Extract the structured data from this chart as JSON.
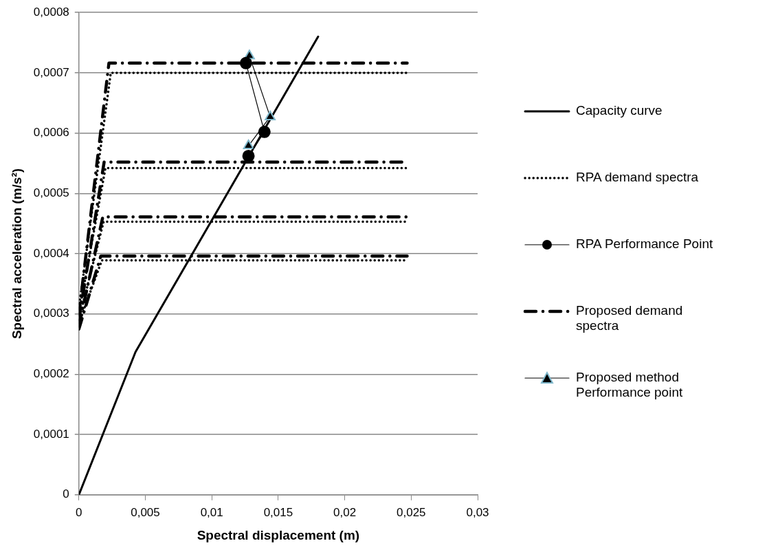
{
  "chart_data": {
    "type": "line",
    "xlabel": "Spectral displacement (m)",
    "ylabel": "Spectral acceleration (m/s²)",
    "xlim": [
      0,
      0.03
    ],
    "ylim": [
      0,
      0.0008
    ],
    "xticks": [
      {
        "value": 0,
        "label": "0"
      },
      {
        "value": 0.005,
        "label": "0,005"
      },
      {
        "value": 0.01,
        "label": "0,01"
      },
      {
        "value": 0.015,
        "label": "0,015"
      },
      {
        "value": 0.02,
        "label": "0,02"
      },
      {
        "value": 0.025,
        "label": "0,025"
      },
      {
        "value": 0.03,
        "label": "0,03"
      }
    ],
    "yticks": [
      {
        "value": 0,
        "label": "0"
      },
      {
        "value": 0.0001,
        "label": "0,0001"
      },
      {
        "value": 0.0002,
        "label": "0,0002"
      },
      {
        "value": 0.0003,
        "label": "0,0003"
      },
      {
        "value": 0.0004,
        "label": "0,0004"
      },
      {
        "value": 0.0005,
        "label": "0,0005"
      },
      {
        "value": 0.0006,
        "label": "0,0006"
      },
      {
        "value": 0.0007,
        "label": "0,0007"
      },
      {
        "value": 0.0008,
        "label": "0,0008"
      }
    ],
    "grid": "y",
    "legend": "right",
    "series": [
      {
        "name": "Capacity curve",
        "color": "#000000",
        "line_style": "solid",
        "marker": "none",
        "x": [
          0,
          0.00426,
          0.018
        ],
        "values": [
          0,
          0.000237,
          0.00076
        ]
      },
      {
        "name": "RPA demand spectra",
        "color": "#000000",
        "line_style": "dotted",
        "marker": "none",
        "x": [
          0,
          0.0024,
          0.0247
        ],
        "values": [
          0.00031,
          0.0007,
          0.0007
        ]
      },
      {
        "color": "#000000",
        "line_style": "dotted",
        "marker": "none",
        "x": [
          0,
          0.002,
          0.0247
        ],
        "values": [
          0.0003,
          0.000542,
          0.000542
        ]
      },
      {
        "color": "#000000",
        "line_style": "dotted",
        "marker": "none",
        "x": [
          0,
          0.00186,
          0.0247
        ],
        "values": [
          0.00029,
          0.000453,
          0.000453
        ]
      },
      {
        "color": "#000000",
        "line_style": "dotted",
        "marker": "none",
        "x": [
          0,
          0.00173,
          0.0247
        ],
        "values": [
          0.000285,
          0.000389,
          0.000389
        ]
      },
      {
        "name": "RPA Performance Point",
        "color": "#000000",
        "line_style": "solid",
        "marker": "circle",
        "x": [
          0.01257,
          0.01396,
          0.01276
        ],
        "values": [
          0.000716,
          0.000602,
          0.000562
        ]
      },
      {
        "name": "Proposed demand spectra",
        "color": "#000000",
        "line_style": "dashdot",
        "marker": "none",
        "x": [
          0,
          0.00226,
          0.0247
        ],
        "values": [
          0.0003,
          0.000716,
          0.000716
        ]
      },
      {
        "color": "#000000",
        "line_style": "dashdot",
        "marker": "none",
        "x": [
          0,
          0.0019,
          0.0247
        ],
        "values": [
          0.00029,
          0.000552,
          0.000552
        ]
      },
      {
        "color": "#000000",
        "line_style": "dashdot",
        "marker": "none",
        "x": [
          0,
          0.0018,
          0.0247
        ],
        "values": [
          0.00028,
          0.000461,
          0.000461
        ]
      },
      {
        "color": "#000000",
        "line_style": "dashdot",
        "marker": "none",
        "x": [
          0,
          0.00165,
          0.0247
        ],
        "values": [
          0.000275,
          0.000396,
          0.000396
        ]
      },
      {
        "name": "Proposed method Performance point",
        "color": "#000000",
        "line_style": "solid",
        "marker": "triangle",
        "x": [
          0.01283,
          0.01439,
          0.01276
        ],
        "values": [
          0.000728,
          0.000627,
          0.000579
        ]
      }
    ]
  }
}
